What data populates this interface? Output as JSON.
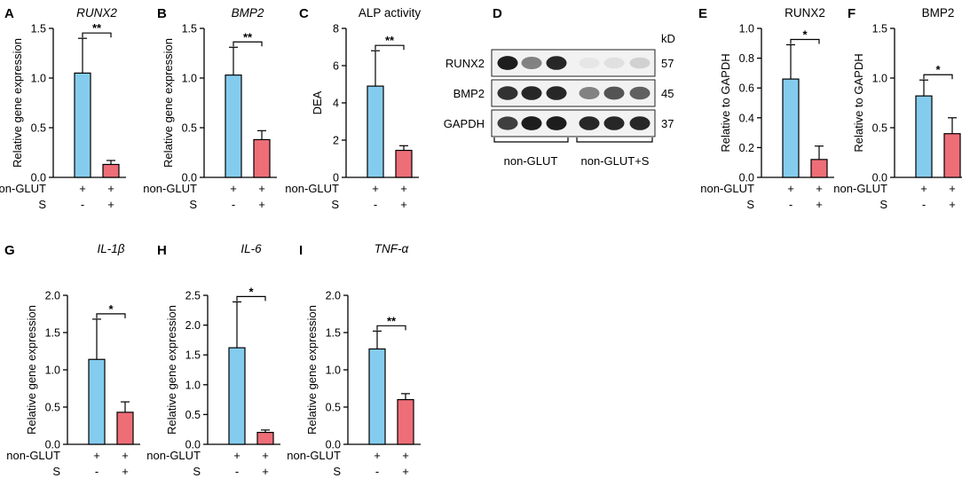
{
  "styles": {
    "bar_colors": [
      "#84CCEE",
      "#EE6E78"
    ],
    "axis_color": "#000000"
  },
  "group_labels": {
    "row1": "non-GLUT",
    "row2": "S",
    "marks_row1": [
      "+",
      "+"
    ],
    "marks_row2": [
      "-",
      "+"
    ]
  },
  "chart_data": [
    {
      "panel": "A",
      "type": "bar",
      "title": "RUNX2",
      "title_italic": true,
      "ylabel": "Relative gene expression",
      "ylim": [
        0,
        1.5
      ],
      "yticks": [
        "0.0",
        "0.5",
        "1.0",
        "1.5"
      ],
      "values": [
        1.05,
        0.13
      ],
      "errors": [
        0.35,
        0.04
      ],
      "sig": "**"
    },
    {
      "panel": "B",
      "type": "bar",
      "title": "BMP2",
      "title_italic": true,
      "ylabel": "Relative gene expression",
      "ylim": [
        0,
        1.5
      ],
      "yticks": [
        "0.0",
        "0.5",
        "1.0",
        "1.5"
      ],
      "values": [
        1.03,
        0.38
      ],
      "errors": [
        0.28,
        0.09
      ],
      "sig": "**"
    },
    {
      "panel": "C",
      "type": "bar",
      "title": "ALP activity",
      "title_italic": false,
      "ylabel": "DEA",
      "ylim": [
        0,
        8
      ],
      "yticks": [
        "0",
        "2",
        "4",
        "6",
        "8"
      ],
      "values": [
        4.9,
        1.45
      ],
      "errors": [
        1.9,
        0.25
      ],
      "sig": "**"
    },
    {
      "panel": "E",
      "type": "bar",
      "title": "RUNX2",
      "title_italic": false,
      "ylabel": "Relative to GAPDH",
      "ylim": [
        0,
        1.0
      ],
      "yticks": [
        "0.0",
        "0.2",
        "0.4",
        "0.6",
        "0.8",
        "1.0"
      ],
      "values": [
        0.66,
        0.12
      ],
      "errors": [
        0.23,
        0.09
      ],
      "sig": "*"
    },
    {
      "panel": "F",
      "type": "bar",
      "title": "BMP2",
      "title_italic": false,
      "ylabel": "Relative to GAPDH",
      "ylim": [
        0,
        1.5
      ],
      "yticks": [
        "0.0",
        "0.5",
        "1.0",
        "1.5"
      ],
      "values": [
        0.82,
        0.44
      ],
      "errors": [
        0.16,
        0.16
      ],
      "sig": "*"
    },
    {
      "panel": "G",
      "type": "bar",
      "title": "IL-1β",
      "title_italic": true,
      "ylabel": "Relative gene expression",
      "ylim": [
        0,
        2.0
      ],
      "yticks": [
        "0.0",
        "0.5",
        "1.0",
        "1.5",
        "2.0"
      ],
      "values": [
        1.14,
        0.43
      ],
      "errors": [
        0.54,
        0.14
      ],
      "sig": "*"
    },
    {
      "panel": "H",
      "type": "bar",
      "title": "IL-6",
      "title_italic": true,
      "ylabel": "Relative gene expression",
      "ylim": [
        0,
        2.5
      ],
      "yticks": [
        "0.0",
        "0.5",
        "1.0",
        "1.5",
        "2.0",
        "2.5"
      ],
      "values": [
        1.62,
        0.2
      ],
      "errors": [
        0.77,
        0.04
      ],
      "sig": "*"
    },
    {
      "panel": "I",
      "type": "bar",
      "title": "TNF-α",
      "title_italic": true,
      "ylabel": "Relative gene expression",
      "ylim": [
        0,
        2.0
      ],
      "yticks": [
        "0.0",
        "0.5",
        "1.0",
        "1.5",
        "2.0"
      ],
      "values": [
        1.28,
        0.6
      ],
      "errors": [
        0.24,
        0.08
      ],
      "sig": "**"
    }
  ],
  "western_blot": {
    "panel": "D",
    "unit": "kD",
    "rows": [
      {
        "label": "RUNX2",
        "kd": "57",
        "band": [
          0.95,
          0.5,
          0.9,
          0.05,
          0.08,
          0.15
        ]
      },
      {
        "label": "BMP2",
        "kd": "45",
        "band": [
          0.85,
          0.9,
          0.9,
          0.5,
          0.7,
          0.65
        ]
      },
      {
        "label": "GAPDH",
        "kd": "37",
        "band": [
          0.8,
          0.95,
          0.95,
          0.9,
          0.9,
          0.9
        ]
      }
    ],
    "groups": [
      "non-GLUT",
      "non-GLUT+S"
    ]
  }
}
